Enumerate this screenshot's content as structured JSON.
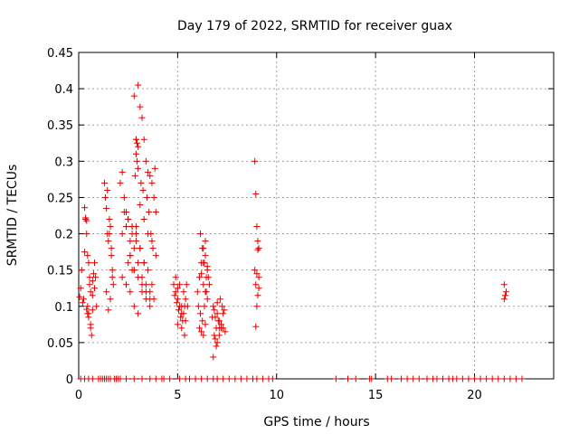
{
  "chart_data": {
    "type": "scatter",
    "title": "Day 179 of 2022, SRMTID for receiver guax",
    "xlabel": "GPS time / hours",
    "ylabel": "SRMTID / TECUs",
    "xlim": [
      0,
      24
    ],
    "ylim": [
      0,
      0.45
    ],
    "xticks": [
      0,
      5,
      10,
      15,
      20
    ],
    "yticks": [
      0,
      0.05,
      0.1,
      0.15,
      0.2,
      0.25,
      0.3,
      0.35,
      0.4,
      0.45
    ],
    "xtick_labels": [
      "0",
      "5",
      "10",
      "15",
      "20"
    ],
    "ytick_labels": [
      "0",
      "0.05",
      "0.1",
      "0.15",
      "0.2",
      "0.25",
      "0.3",
      "0.35",
      "0.4",
      "0.45"
    ],
    "grid": true,
    "marker_color": "#e00000",
    "marker": "+",
    "series": [
      {
        "name": "SRMTID",
        "x": [
          0.05,
          0.1,
          0.15,
          0.2,
          0.25,
          0.3,
          0.35,
          0.4,
          0.45,
          0.5,
          0.55,
          0.6,
          0.65,
          0.7,
          0.75,
          0.8,
          0.85,
          0.9,
          0.3,
          0.35,
          0.4,
          0.45,
          0.5,
          0.55,
          0.6,
          0.7,
          0.8,
          0.4,
          0.45,
          0.5,
          0.6,
          0.7,
          1.3,
          1.35,
          1.4,
          1.45,
          1.5,
          1.55,
          1.6,
          1.65,
          1.7,
          1.75,
          1.4,
          1.5,
          1.6,
          1.7,
          1.45,
          1.55,
          1.65,
          2.1,
          2.2,
          2.3,
          2.4,
          2.5,
          2.6,
          2.7,
          2.8,
          2.9,
          3.0,
          3.1,
          3.2,
          3.3,
          3.4,
          3.5,
          3.6,
          3.7,
          3.8,
          3.9,
          2.2,
          2.4,
          2.6,
          2.8,
          3.0,
          3.2,
          3.4,
          3.6,
          3.8,
          2.3,
          2.5,
          2.7,
          2.9,
          3.1,
          3.3,
          3.5,
          3.7,
          2.2,
          2.4,
          2.6,
          2.8,
          3.0,
          3.2,
          3.4,
          3.6,
          2.5,
          2.7,
          2.9,
          3.1,
          3.3,
          3.5,
          3.7,
          3.9,
          2.6,
          2.8,
          3.0,
          3.2,
          3.4,
          3.6,
          2.7,
          2.9,
          3.1,
          3.3,
          2.8,
          2.9,
          2.95,
          3.0,
          2.9,
          2.95,
          3.0,
          2.85,
          3.15,
          3.25,
          3.45,
          3.55,
          3.65,
          3.75,
          3.85,
          4.8,
          4.9,
          5.0,
          5.1,
          5.2,
          5.3,
          5.4,
          5.5,
          4.85,
          4.95,
          5.05,
          5.15,
          5.25,
          5.35,
          5.45,
          4.9,
          5.0,
          5.1,
          5.2,
          5.3,
          5.4,
          5.0,
          5.2,
          5.35,
          6.0,
          6.1,
          6.2,
          6.3,
          6.4,
          6.5,
          6.6,
          6.05,
          6.15,
          6.25,
          6.35,
          6.45,
          6.55,
          6.1,
          6.2,
          6.3,
          6.4,
          6.5,
          6.2,
          6.3,
          6.4,
          6.5,
          6.15,
          6.25,
          6.35,
          6.45,
          6.3,
          6.4,
          6.8,
          6.9,
          7.0,
          7.1,
          7.2,
          7.3,
          7.4,
          6.85,
          6.95,
          7.05,
          7.15,
          7.25,
          7.35,
          6.9,
          7.0,
          7.1,
          7.2,
          6.8,
          6.95,
          7.1,
          7.3,
          6.75,
          6.85,
          7.0,
          8.9,
          8.95,
          9.0,
          9.05,
          9.1,
          8.9,
          9.0,
          9.1,
          8.95,
          9.05,
          9.0,
          8.95,
          9.05,
          9.1,
          21.5,
          21.55,
          21.5,
          21.6,
          0.1,
          0.3,
          0.5,
          0.7,
          1.0,
          1.1,
          1.2,
          1.3,
          1.4,
          1.5,
          1.6,
          1.8,
          1.9,
          2.0,
          2.1,
          2.4,
          2.8,
          3.2,
          3.6,
          3.9,
          4.2,
          4.3,
          4.6,
          5.1,
          5.4,
          5.6,
          5.9,
          6.2,
          6.5,
          6.8,
          7.0,
          7.3,
          7.6,
          7.9,
          8.2,
          8.5,
          8.8,
          9.0,
          9.3,
          9.6,
          9.8,
          13.0,
          13.6,
          14.0,
          14.7,
          14.8,
          15.6,
          15.8,
          16.3,
          16.6,
          16.9,
          17.2,
          17.6,
          17.9,
          18.1,
          18.4,
          18.7,
          18.9,
          19.1,
          19.4,
          19.7,
          20.0,
          20.3,
          20.6,
          20.9,
          21.2,
          21.5,
          21.8,
          22.1,
          22.4
        ],
        "y": [
          0.113,
          0.125,
          0.15,
          0.105,
          0.11,
          0.175,
          0.22,
          0.2,
          0.1,
          0.09,
          0.13,
          0.07,
          0.06,
          0.115,
          0.145,
          0.16,
          0.14,
          0.1,
          0.236,
          0.222,
          0.218,
          0.17,
          0.16,
          0.14,
          0.12,
          0.135,
          0.125,
          0.096,
          0.09,
          0.085,
          0.075,
          0.095,
          0.27,
          0.25,
          0.235,
          0.2,
          0.19,
          0.2,
          0.21,
          0.17,
          0.15,
          0.13,
          0.12,
          0.095,
          0.11,
          0.14,
          0.26,
          0.22,
          0.18,
          0.27,
          0.285,
          0.25,
          0.23,
          0.22,
          0.19,
          0.21,
          0.18,
          0.33,
          0.405,
          0.375,
          0.36,
          0.33,
          0.3,
          0.285,
          0.28,
          0.27,
          0.25,
          0.23,
          0.2,
          0.21,
          0.17,
          0.15,
          0.16,
          0.14,
          0.13,
          0.12,
          0.11,
          0.23,
          0.22,
          0.2,
          0.19,
          0.18,
          0.16,
          0.15,
          0.13,
          0.14,
          0.13,
          0.12,
          0.1,
          0.09,
          0.12,
          0.11,
          0.1,
          0.16,
          0.15,
          0.21,
          0.24,
          0.22,
          0.2,
          0.19,
          0.17,
          0.17,
          0.15,
          0.14,
          0.13,
          0.12,
          0.11,
          0.21,
          0.2,
          0.18,
          0.16,
          0.39,
          0.33,
          0.325,
          0.32,
          0.31,
          0.3,
          0.29,
          0.28,
          0.27,
          0.26,
          0.25,
          0.23,
          0.2,
          0.18,
          0.29,
          0.13,
          0.12,
          0.11,
          0.1,
          0.09,
          0.12,
          0.11,
          0.1,
          0.115,
          0.105,
          0.095,
          0.085,
          0.08,
          0.1,
          0.13,
          0.14,
          0.125,
          0.13,
          0.1,
          0.09,
          0.08,
          0.075,
          0.07,
          0.06,
          0.12,
          0.14,
          0.16,
          0.18,
          0.19,
          0.15,
          0.13,
          0.1,
          0.09,
          0.08,
          0.1,
          0.12,
          0.14,
          0.07,
          0.065,
          0.06,
          0.075,
          0.11,
          0.145,
          0.16,
          0.17,
          0.155,
          0.2,
          0.18,
          0.16,
          0.14,
          0.13,
          0.12,
          0.1,
          0.085,
          0.09,
          0.08,
          0.075,
          0.07,
          0.065,
          0.06,
          0.07,
          0.08,
          0.11,
          0.1,
          0.095,
          0.055,
          0.05,
          0.06,
          0.07,
          0.03,
          0.045,
          0.07,
          0.09,
          0.085,
          0.095,
          0.105,
          0.3,
          0.255,
          0.21,
          0.19,
          0.18,
          0.15,
          0.145,
          0.14,
          0.13,
          0.115,
          0.1,
          0.072,
          0.178,
          0.125,
          0.13,
          0.115,
          0.11,
          0.12,
          0,
          0,
          0,
          0,
          0,
          0,
          0,
          0,
          0,
          0,
          0,
          0,
          0,
          0,
          0,
          0,
          0,
          0,
          0,
          0,
          0,
          0,
          0,
          0,
          0,
          0,
          0,
          0,
          0,
          0,
          0,
          0,
          0,
          0,
          0,
          0,
          0,
          0,
          0,
          0,
          0,
          0,
          0,
          0,
          0,
          0,
          0,
          0,
          0,
          0,
          0,
          0,
          0,
          0,
          0,
          0,
          0,
          0,
          0,
          0,
          0,
          0,
          0,
          0,
          0,
          0,
          0,
          0,
          0,
          0
        ]
      }
    ]
  }
}
